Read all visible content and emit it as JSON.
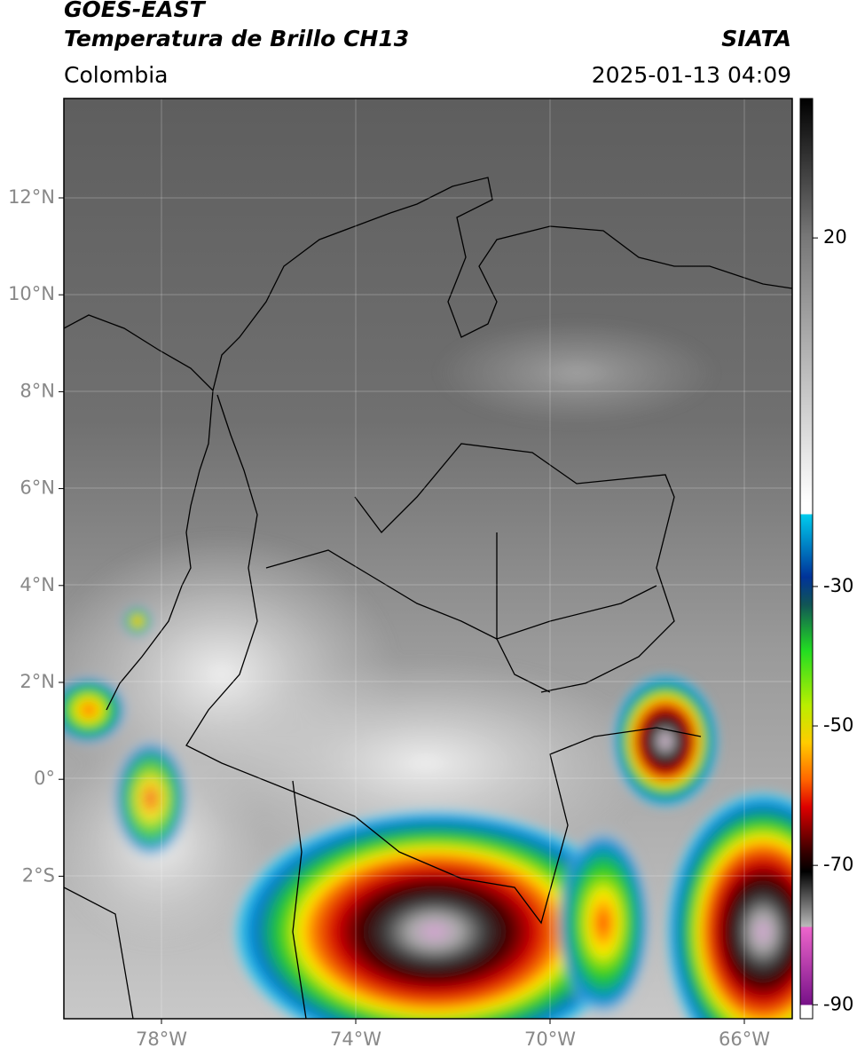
{
  "header": {
    "title": "GOES-EAST",
    "subtitle": "Temperatura de Brillo CH13",
    "region": "Colombia",
    "source": "SIATA",
    "datetime": "2025-01-13 04:09"
  },
  "map": {
    "lat_labels": [
      "12°N",
      "10°N",
      "8°N",
      "6°N",
      "4°N",
      "2°N",
      "0°",
      "2°S"
    ],
    "lon_labels": [
      "78°W",
      "74°W",
      "70°W",
      "66°W"
    ]
  },
  "colorbar": {
    "limits": [
      -92,
      40
    ],
    "ticks": [
      20,
      -30,
      -50,
      -70,
      -90
    ]
  }
}
